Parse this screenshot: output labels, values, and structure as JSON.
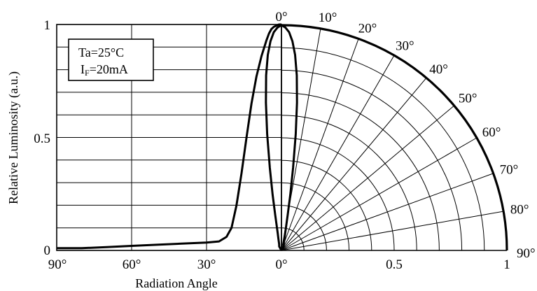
{
  "chart_data": [
    {
      "type": "line",
      "title": "",
      "xlabel": "Radiation Angle",
      "ylabel": "Relative Luminosity (a.u.)",
      "x_tick_labels": [
        "90°",
        "60°",
        "30°",
        "0°"
      ],
      "y_tick_labels": [
        "0",
        "0.5",
        "1"
      ],
      "xlim": [
        -90,
        0
      ],
      "ylim": [
        0,
        1
      ],
      "grid": true,
      "conditions": {
        "temperature": "Ta=25°C",
        "current_symbol": "I",
        "current_subscript": "F",
        "current_value": "=20mA"
      },
      "series": [
        {
          "x": [
            -90,
            -80,
            -70,
            -60,
            -50,
            -40,
            -30,
            -25,
            -22,
            -20,
            -18,
            -16,
            -14,
            -12,
            -10,
            -8,
            -6,
            -5,
            -4,
            -3,
            -2,
            -1,
            0
          ],
          "y": [
            0.01,
            0.01,
            0.015,
            0.02,
            0.025,
            0.03,
            0.035,
            0.04,
            0.06,
            0.1,
            0.2,
            0.34,
            0.5,
            0.65,
            0.77,
            0.86,
            0.93,
            0.96,
            0.98,
            0.99,
            0.995,
            1.0,
            1.0
          ]
        }
      ]
    },
    {
      "type": "polar",
      "angle_labels": [
        "0°",
        "10°",
        "20°",
        "30°",
        "40°",
        "50°",
        "60°",
        "70°",
        "80°",
        "90°"
      ],
      "radial_tick_labels": [
        "0°",
        "0.5",
        "1"
      ],
      "radial_range": [
        0,
        1
      ],
      "angle_range_deg": [
        0,
        90
      ],
      "series": [
        {
          "angle_deg": [
            0,
            1,
            2,
            3,
            4,
            5,
            6,
            7,
            8,
            9,
            10,
            12,
            15,
            20,
            30,
            90
          ],
          "r": [
            1.0,
            0.99,
            0.97,
            0.93,
            0.87,
            0.78,
            0.66,
            0.52,
            0.37,
            0.25,
            0.16,
            0.08,
            0.05,
            0.03,
            0.02,
            0.0
          ]
        }
      ]
    }
  ]
}
